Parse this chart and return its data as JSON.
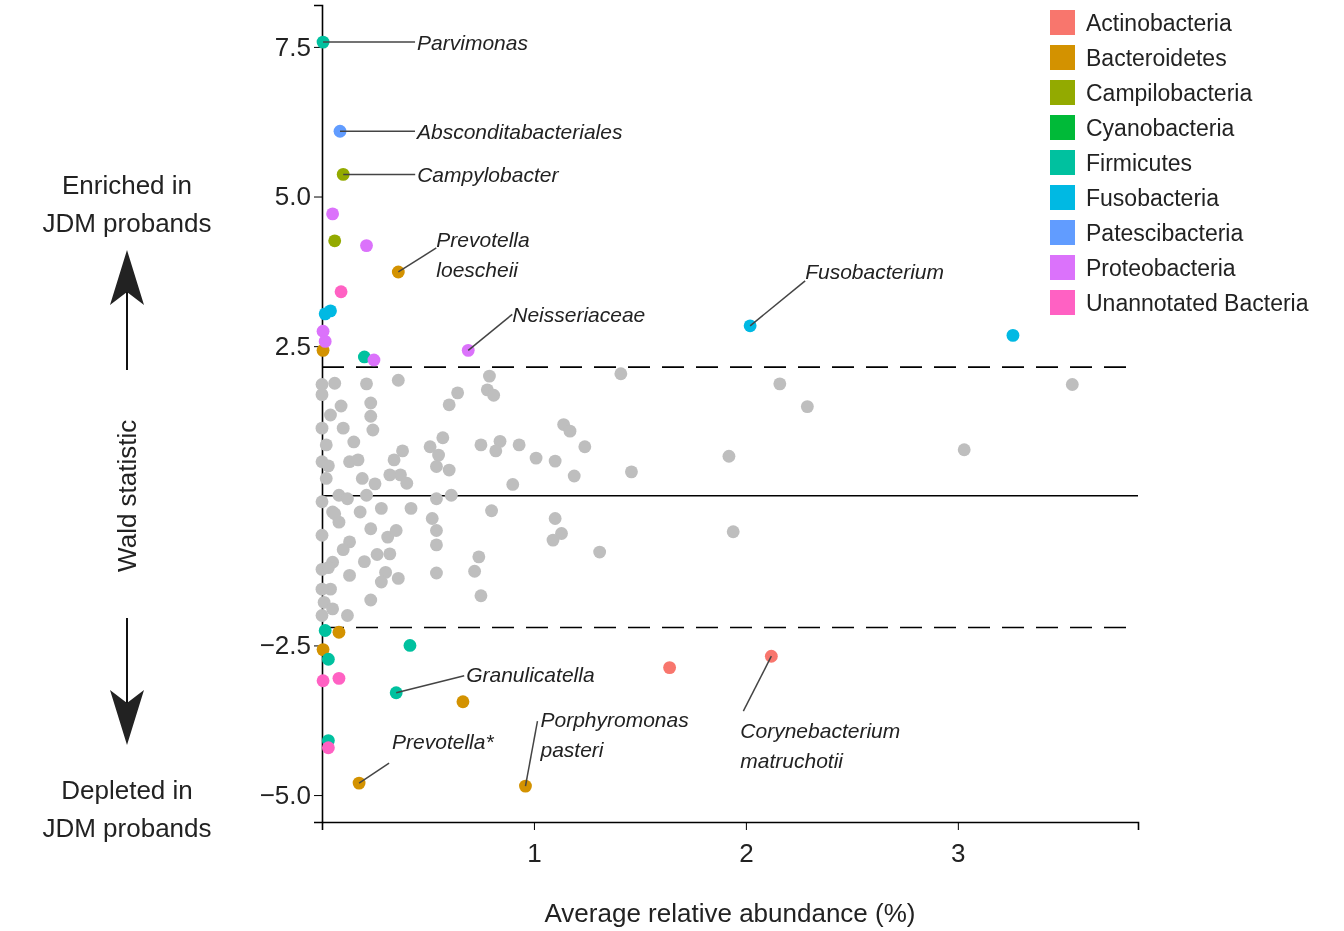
{
  "chart_data": {
    "type": "scatter",
    "xlabel": "Average relative abundance (%)",
    "ylabel": "Wald statistic",
    "xlim": [
      0,
      3.85
    ],
    "ylim": [
      -5.45,
      8.2
    ],
    "xticks": [
      1,
      2,
      3
    ],
    "yticks": [
      {
        "value": -5,
        "label": "−5.0"
      },
      {
        "value": -2.5,
        "label": "−2.5"
      },
      2.5,
      {
        "value": 5,
        "label": "5.0"
      },
      7.5
    ],
    "grid": false,
    "legend": "top right",
    "marker": "circle",
    "ref_lines": [
      {
        "axis": "y",
        "value": 0,
        "line_style": "solid",
        "color": "#000000"
      },
      {
        "axis": "y",
        "value": 2.15,
        "line_style": "dashed",
        "color": "#000000"
      },
      {
        "axis": "y",
        "value": -2.2,
        "line_style": "dashed",
        "color": "#000000"
      }
    ],
    "annotations": [
      "Enriched in JDM probands",
      "Depleted in JDM probands",
      {
        "text": "Parvimonas",
        "x": 0.005,
        "y": 7.58
      },
      {
        "text": "Absconditabacteriales",
        "x": 0.085,
        "y": 6.09
      },
      {
        "text": "Campylobacter",
        "x": 0.1,
        "y": 5.37
      },
      {
        "text": "Prevotella loescheii",
        "x": 0.36,
        "y": 3.74
      },
      {
        "text": "Neisseriaceae",
        "x": 0.69,
        "y": 2.43
      },
      {
        "text": "Fusobacterium",
        "x": 2.02,
        "y": 2.84
      },
      {
        "text": "Granulicatella",
        "x": 0.35,
        "y": -3.29
      },
      {
        "text": "Prevotella*",
        "x": 0.175,
        "y": -4.8
      },
      {
        "text": "Porphyromonas pasteri",
        "x": 0.96,
        "y": -4.85
      },
      {
        "text": "Corynebacterium matruchotii",
        "x": 2.12,
        "y": -2.68
      }
    ],
    "series": [
      {
        "color": "#bebebe",
        "x": [
          0,
          0.06,
          0.21,
          0.36,
          0.79,
          0.78,
          0.81,
          1.41,
          2.16,
          0.23,
          0.64,
          0.6,
          0.23,
          0.24,
          0.57,
          0.51,
          0.55,
          0.54,
          0.6,
          0.75,
          0.84,
          0.82,
          0.93,
          1.01,
          1.1,
          1.14,
          1.17,
          1.24,
          1.19,
          1.46,
          1.92,
          0.9,
          0.38,
          0.34,
          0.54,
          0.61,
          0.8,
          1.1,
          1.13,
          1.09,
          1.94,
          1.31,
          0.74,
          0.72,
          0.75,
          0.54,
          0.52,
          0.54,
          0.54,
          0.31,
          0.26,
          0.32,
          0.13,
          0.3,
          0.28,
          0.36,
          0.23,
          0.42,
          0.35,
          0.4,
          0.37,
          0.32,
          0.19,
          0.13,
          0.1,
          0.04,
          0.02,
          0.02,
          0.08,
          0.18,
          0.23,
          0.13,
          0.05,
          0.04,
          0.01,
          0.05,
          0.12,
          0,
          0,
          0,
          0,
          0,
          0,
          0,
          0.08,
          0.21,
          0.28,
          0.05,
          0,
          2.29,
          3.54,
          3.03,
          0.03,
          0.06,
          0.1,
          0.15,
          0.09,
          0.03,
          0.2,
          0.17,
          0.25,
          0.12
        ],
        "values": [
          1.86,
          1.88,
          1.87,
          1.93,
          2.0,
          1.77,
          1.68,
          2.04,
          1.87,
          1.55,
          1.72,
          1.52,
          1.33,
          1.1,
          0.97,
          0.82,
          0.68,
          0.49,
          0.43,
          0.85,
          0.91,
          0.75,
          0.85,
          0.63,
          0.58,
          1.19,
          1.08,
          0.82,
          0.33,
          0.4,
          0.66,
          0.19,
          0.75,
          0.6,
          -0.05,
          0.01,
          -0.25,
          -0.38,
          -0.63,
          -0.74,
          -0.6,
          -0.94,
          -1.02,
          -1.26,
          -1.67,
          -1.29,
          -0.38,
          -0.58,
          -0.82,
          -0.69,
          -0.98,
          -0.97,
          -1.33,
          -1.28,
          -1.44,
          -1.38,
          -1.74,
          -0.21,
          -0.58,
          0.21,
          0.35,
          0.35,
          0.29,
          0.57,
          1.13,
          1.35,
          0.85,
          0.29,
          0.01,
          -0.27,
          -0.55,
          -0.77,
          -1.11,
          -1.56,
          -1.78,
          -1.89,
          -2.0,
          1.69,
          1.13,
          0.57,
          -0.1,
          -0.66,
          -1.23,
          -1.56,
          -0.44,
          0.01,
          -0.21,
          -0.27,
          -2.0,
          1.49,
          1.86,
          0.77,
          0.5,
          -0.3,
          -0.9,
          0.9,
          1.5,
          -1.2,
          -1.1,
          0.6,
          0.2,
          -0.05
        ]
      },
      {
        "name": "Actinobacteria",
        "color": "#f8766d",
        "x": [
          1.64,
          2.12
        ],
        "values": [
          -2.87,
          -2.68
        ]
      },
      {
        "name": "Bacteroidetes",
        "color": "#d39200",
        "x": [
          0.36,
          0.005,
          0.08,
          0.005,
          0.665,
          0.175,
          0.96
        ],
        "values": [
          3.74,
          2.43,
          -2.28,
          -2.57,
          -3.44,
          -4.8,
          -4.85
        ]
      },
      {
        "name": "Campilobacteria",
        "color": "#93aa00",
        "x": [
          0.1,
          0.06
        ],
        "values": [
          5.37,
          4.26
        ]
      },
      {
        "name": "Cyanobacteria",
        "color": "#00ba38"
      },
      {
        "name": "Firmicutes",
        "color": "#00c19f",
        "x": [
          0.005,
          0.2,
          0.015,
          0.03,
          0.415,
          0.35,
          0.03
        ],
        "values": [
          7.58,
          2.32,
          -2.25,
          -2.73,
          -2.5,
          -3.29,
          -4.09
        ]
      },
      {
        "name": "Fusobacteria",
        "color": "#00b9e3",
        "x": [
          0.015,
          0.04,
          2.02,
          3.26
        ],
        "values": [
          3.04,
          3.09,
          2.84,
          2.68
        ]
      },
      {
        "name": "Patescibacteria",
        "color": "#619cff",
        "x": [
          0.085
        ],
        "values": [
          6.09
        ]
      },
      {
        "name": "Proteobacteria",
        "color": "#db72fb",
        "x": [
          0.05,
          0.21,
          0.005,
          0.015,
          0.245,
          0.69
        ],
        "values": [
          4.71,
          4.18,
          2.75,
          2.58,
          2.27,
          2.43
        ]
      },
      {
        "name": "Unannotated Bacteria",
        "color": "#ff61c3",
        "x": [
          0.09,
          0.005,
          0.08,
          0.03
        ],
        "values": [
          3.41,
          -3.09,
          -3.05,
          -4.21
        ]
      }
    ]
  }
}
